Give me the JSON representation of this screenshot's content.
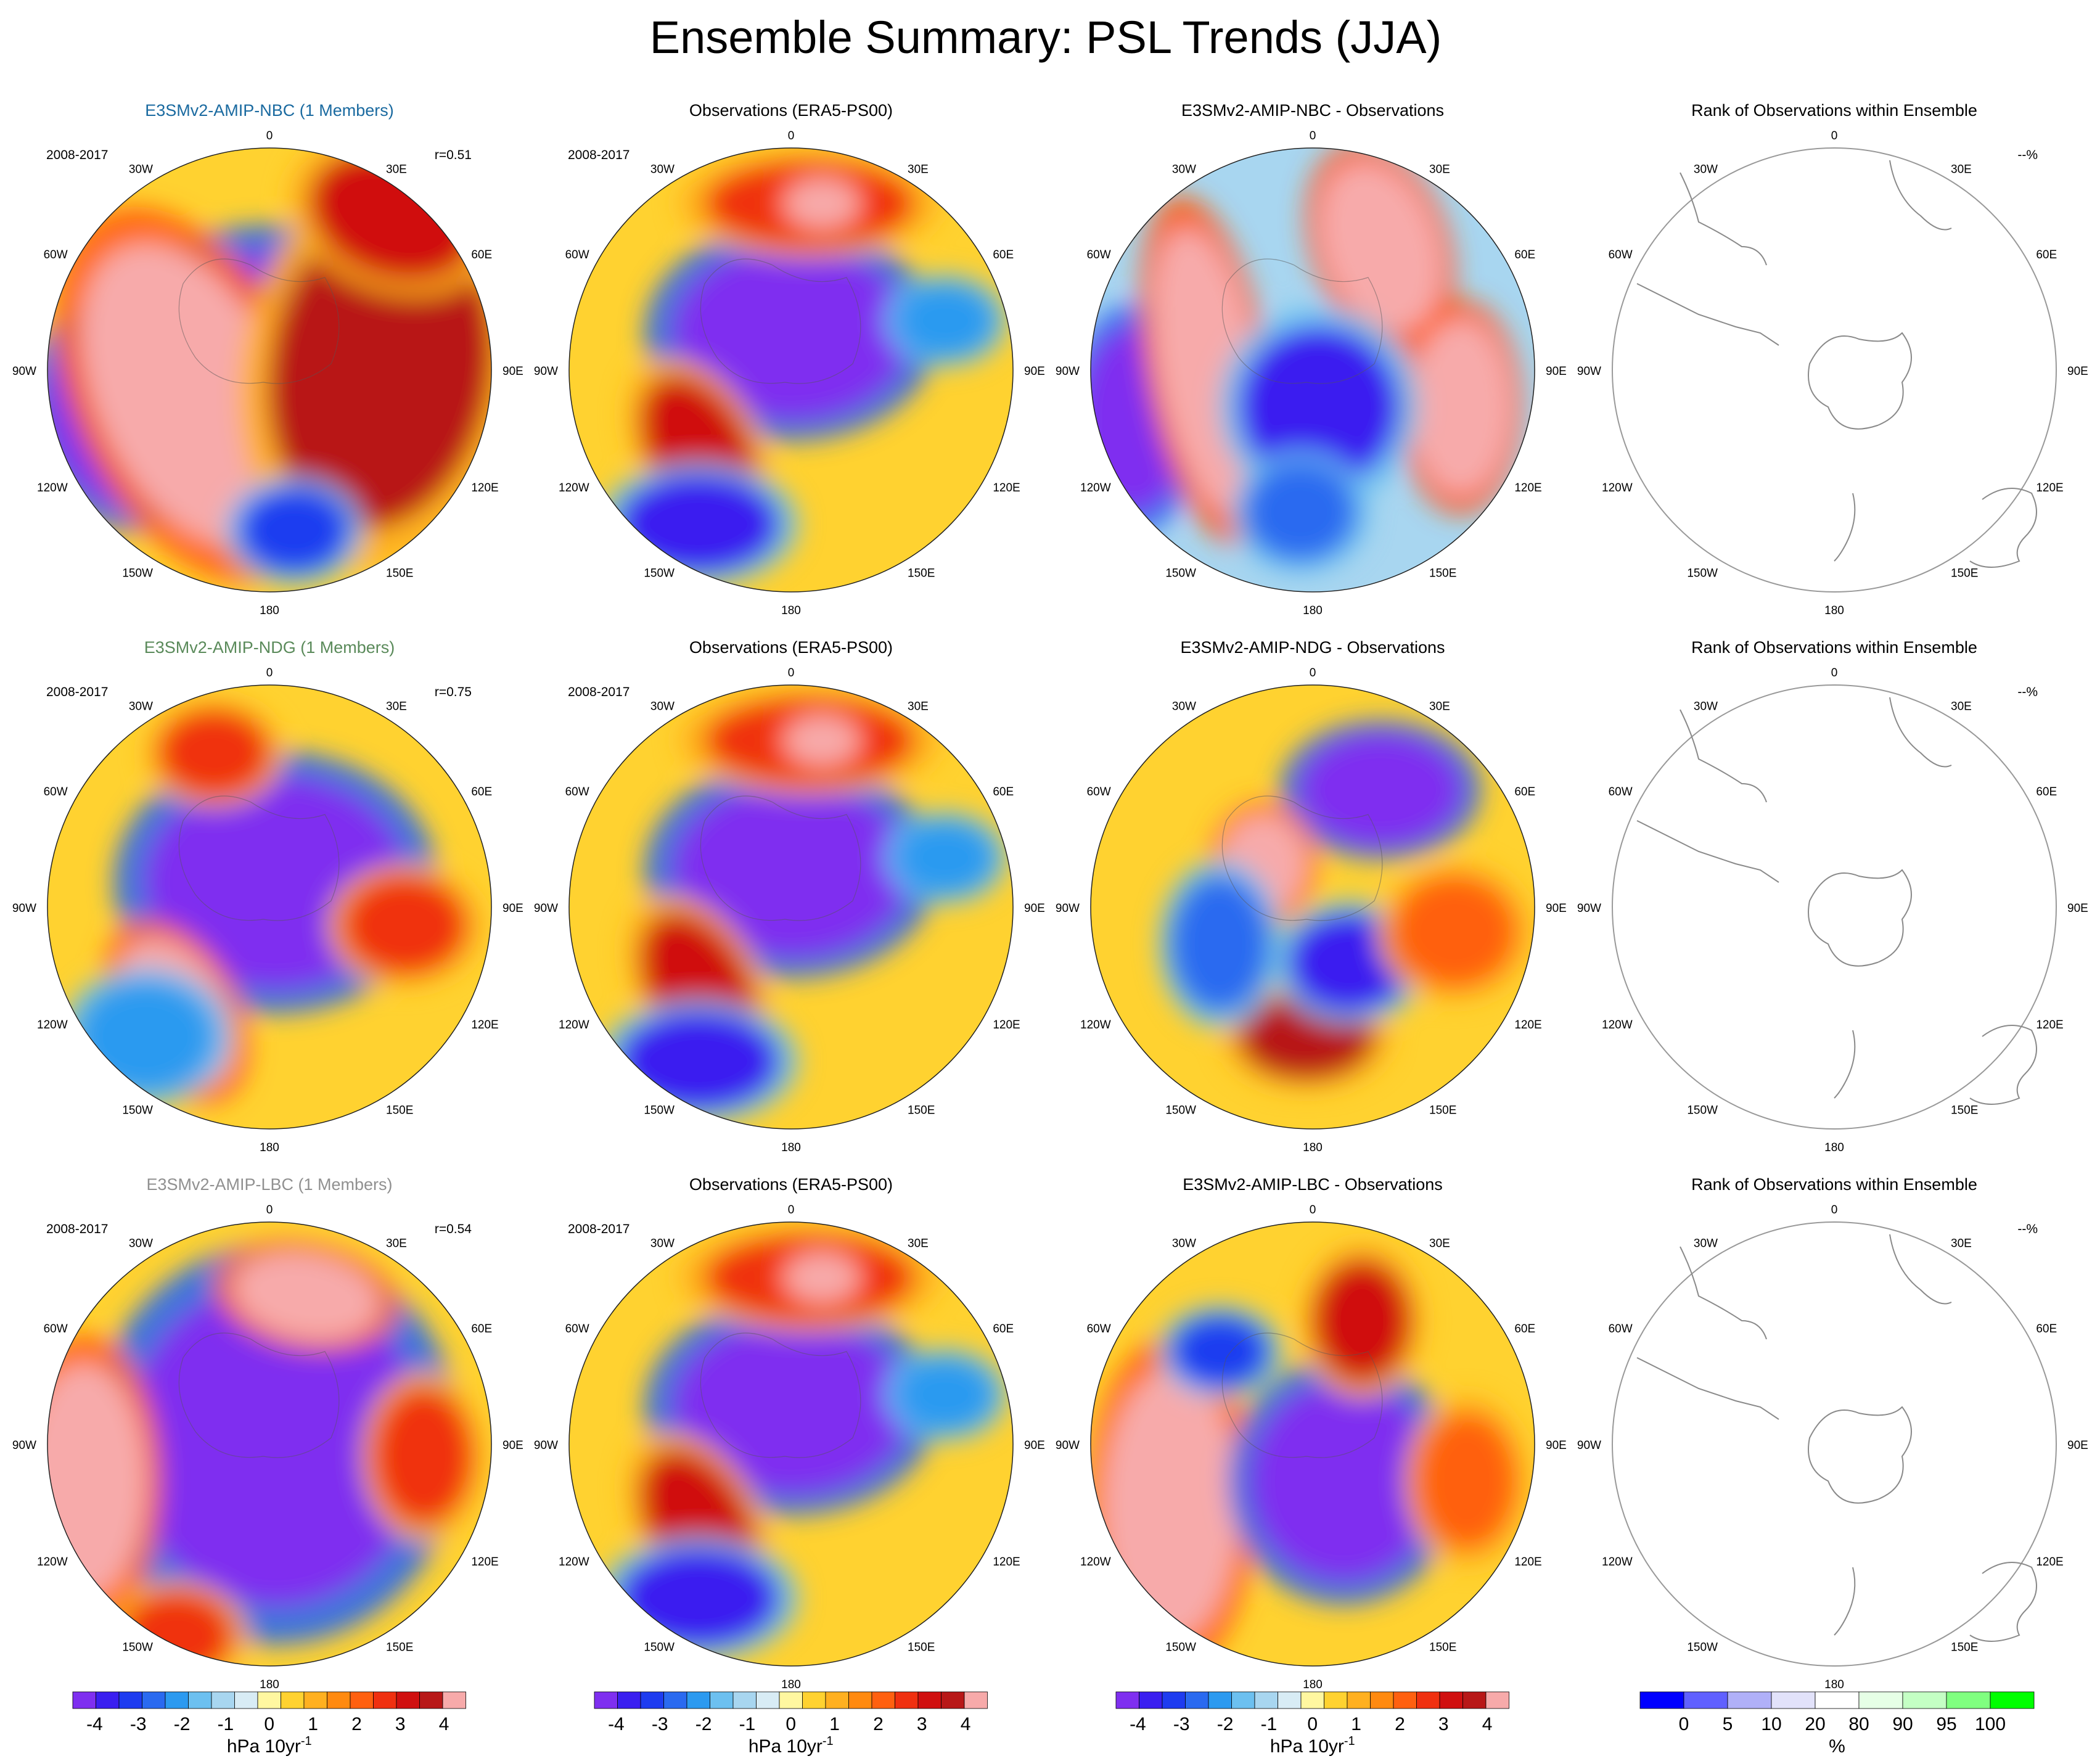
{
  "title": "Ensemble Summary: PSL Trends (JJA)",
  "colors": {
    "psl": [
      "#7f2ff0",
      "#3a1ff0",
      "#1e3cf0",
      "#2a6af0",
      "#2c9af0",
      "#6cc0f0",
      "#a8d6f0",
      "#d8ecf5",
      "#fff7a0",
      "#ffd230",
      "#ffb020",
      "#ff8a10",
      "#ff6010",
      "#f03010",
      "#d01010",
      "#b81818",
      "#f7aaaa"
    ],
    "rank": [
      "#0000ff",
      "#6060ff",
      "#b0b0f8",
      "#e2e2fa",
      "#ffffff",
      "#e6ffe6",
      "#c4ffc4",
      "#80ff80",
      "#00ff00"
    ],
    "name_nbc": "#1a6aa0",
    "name_ndg": "#5a8a5a",
    "name_lbc": "#909090"
  },
  "lon_labels": [
    "0",
    "30E",
    "60E",
    "90E",
    "120E",
    "150E",
    "180",
    "150W",
    "120W",
    "90W",
    "60W",
    "30W"
  ],
  "rows": [
    {
      "model": {
        "title": "E3SMv2-AMIP-NBC (1 Members)",
        "period": "2008-2017",
        "r": "r=0.51",
        "color_key": "name_nbc"
      },
      "obs": {
        "title": "Observations (ERA5-PS00)",
        "period": "2008-2017"
      },
      "diff": {
        "title": "E3SMv2-AMIP-NBC - Observations"
      },
      "rank": {
        "title": "Rank of Observations within Ensemble",
        "pct": "--%"
      }
    },
    {
      "model": {
        "title": "E3SMv2-AMIP-NDG (1 Members)",
        "period": "2008-2017",
        "r": "r=0.75",
        "color_key": "name_ndg"
      },
      "obs": {
        "title": "Observations (ERA5-PS00)",
        "period": "2008-2017"
      },
      "diff": {
        "title": "E3SMv2-AMIP-NDG - Observations"
      },
      "rank": {
        "title": "Rank of Observations within Ensemble",
        "pct": "--%"
      }
    },
    {
      "model": {
        "title": "E3SMv2-AMIP-LBC (1 Members)",
        "period": "2008-2017",
        "r": "r=0.54",
        "color_key": "name_lbc"
      },
      "obs": {
        "title": "Observations (ERA5-PS00)",
        "period": "2008-2017"
      },
      "diff": {
        "title": "E3SMv2-AMIP-LBC - Observations"
      },
      "rank": {
        "title": "Rank of Observations within Ensemble",
        "pct": "--%"
      }
    }
  ],
  "colorbars": {
    "psl": {
      "ticks": [
        "-4",
        "-3",
        "-2",
        "-1",
        "0",
        "1",
        "2",
        "3",
        "4"
      ],
      "label": "hPa 10yr",
      "label_sup": "-1"
    },
    "rank": {
      "ticks": [
        "0",
        "5",
        "10",
        "20",
        "80",
        "90",
        "95",
        "100"
      ],
      "label": "%"
    }
  },
  "chart_data": {
    "type": "heatmap",
    "title": "Ensemble Summary: PSL Trends (JJA)",
    "projection": "south polar stereographic",
    "panels_per_row": [
      "model",
      "observations",
      "model minus observations",
      "rank of observations within ensemble"
    ],
    "period": "2008-2017",
    "pattern_correlation": {
      "E3SMv2-AMIP-NBC": 0.51,
      "E3SMv2-AMIP-NDG": 0.75,
      "E3SMv2-AMIP-LBC": 0.54
    },
    "psl_scale": {
      "units": "hPa 10yr-1",
      "min": -4.5,
      "max": 4.5,
      "step": 0.5
    },
    "rank_scale": {
      "units": "%",
      "bounds": [
        0,
        5,
        10,
        20,
        80,
        90,
        95,
        100
      ]
    },
    "rank_percent_shown": "--%"
  }
}
